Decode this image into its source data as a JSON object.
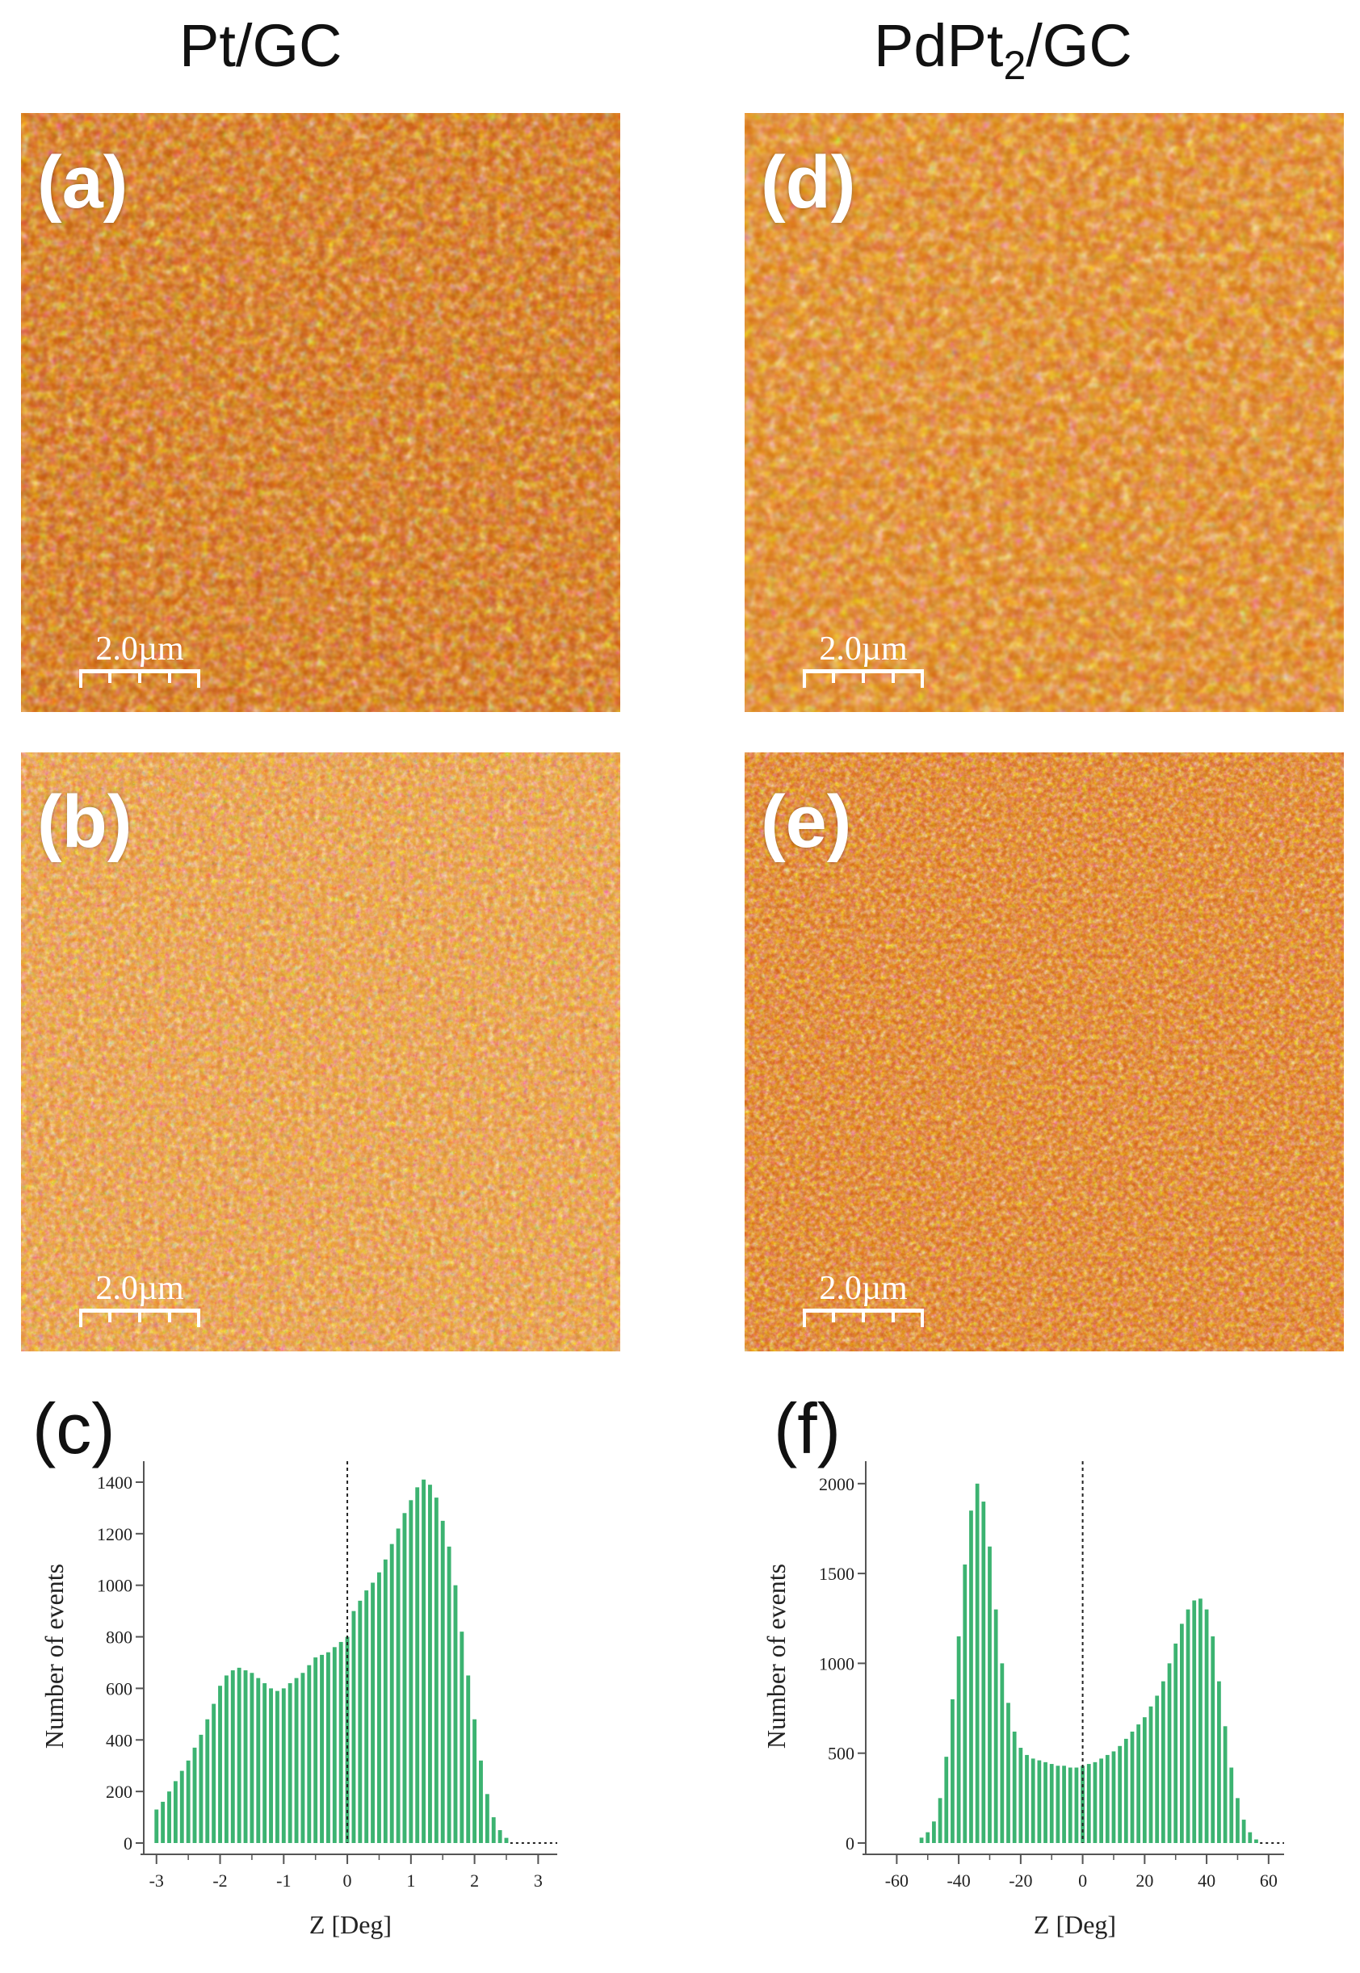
{
  "columns": {
    "left": "Pt/GC",
    "right": {
      "pre": "PdPt",
      "sub": "2",
      "post": "/GC"
    }
  },
  "panels": {
    "a": {
      "label": "(a)",
      "scale": "2.0µm"
    },
    "b": {
      "label": "(b)",
      "scale": "2.0µm"
    },
    "d": {
      "label": "(d)",
      "scale": "2.0µm"
    },
    "e": {
      "label": "(e)",
      "scale": "2.0µm"
    }
  },
  "colors": {
    "bar": "#3cb371",
    "afm_light": "#ffd9a0",
    "afm_dark": "#a63d00",
    "afm_blue": "#1a2ea8"
  },
  "chart_data": [
    {
      "panel_label": "(c)",
      "type": "bar",
      "xlabel": "Z [Deg]",
      "ylabel": "Number of events",
      "xlim": [
        -3.2,
        3.3
      ],
      "ylim": [
        0,
        1450
      ],
      "xticks": [
        -3,
        -2,
        -1,
        0,
        1,
        2,
        3
      ],
      "yticks": [
        0,
        200,
        400,
        600,
        800,
        1000,
        1200,
        1400
      ],
      "reference_line_x": 0,
      "x": [
        -3.0,
        -2.9,
        -2.8,
        -2.7,
        -2.6,
        -2.5,
        -2.4,
        -2.3,
        -2.2,
        -2.1,
        -2.0,
        -1.9,
        -1.8,
        -1.7,
        -1.6,
        -1.5,
        -1.4,
        -1.3,
        -1.2,
        -1.1,
        -1.0,
        -0.9,
        -0.8,
        -0.7,
        -0.6,
        -0.5,
        -0.4,
        -0.3,
        -0.2,
        -0.1,
        0.0,
        0.1,
        0.2,
        0.3,
        0.4,
        0.5,
        0.6,
        0.7,
        0.8,
        0.9,
        1.0,
        1.1,
        1.2,
        1.3,
        1.4,
        1.5,
        1.6,
        1.7,
        1.8,
        1.9,
        2.0,
        2.1,
        2.2,
        2.3,
        2.4,
        2.5
      ],
      "values": [
        130,
        160,
        200,
        240,
        280,
        320,
        370,
        420,
        480,
        540,
        610,
        650,
        670,
        680,
        670,
        660,
        640,
        620,
        600,
        590,
        600,
        620,
        640,
        660,
        690,
        720,
        730,
        740,
        760,
        780,
        800,
        900,
        940,
        980,
        1010,
        1050,
        1100,
        1160,
        1220,
        1280,
        1330,
        1380,
        1410,
        1390,
        1340,
        1250,
        1150,
        1000,
        820,
        650,
        480,
        320,
        190,
        100,
        50,
        20
      ]
    },
    {
      "panel_label": "(f)",
      "type": "bar",
      "xlabel": "Z [Deg]",
      "ylabel": "Number of events",
      "xlim": [
        -70,
        65
      ],
      "ylim": [
        0,
        2080
      ],
      "xticks": [
        -60,
        -40,
        -20,
        0,
        20,
        40,
        60
      ],
      "yticks": [
        0,
        500,
        1000,
        1500,
        2000
      ],
      "reference_line_x": 0,
      "x": [
        -52,
        -50,
        -48,
        -46,
        -44,
        -42,
        -40,
        -38,
        -36,
        -34,
        -32,
        -30,
        -28,
        -26,
        -24,
        -22,
        -20,
        -18,
        -16,
        -14,
        -12,
        -10,
        -8,
        -6,
        -4,
        -2,
        0,
        2,
        4,
        6,
        8,
        10,
        12,
        14,
        16,
        18,
        20,
        22,
        24,
        26,
        28,
        30,
        32,
        34,
        36,
        38,
        40,
        42,
        44,
        46,
        48,
        50,
        52,
        54,
        56
      ],
      "values": [
        30,
        60,
        120,
        250,
        480,
        800,
        1150,
        1550,
        1850,
        2000,
        1900,
        1650,
        1300,
        1000,
        780,
        620,
        530,
        490,
        470,
        460,
        450,
        440,
        430,
        430,
        420,
        420,
        430,
        440,
        450,
        470,
        490,
        510,
        540,
        580,
        620,
        660,
        700,
        760,
        820,
        900,
        1000,
        1110,
        1220,
        1300,
        1350,
        1360,
        1300,
        1150,
        900,
        650,
        420,
        250,
        130,
        60,
        20
      ]
    }
  ]
}
